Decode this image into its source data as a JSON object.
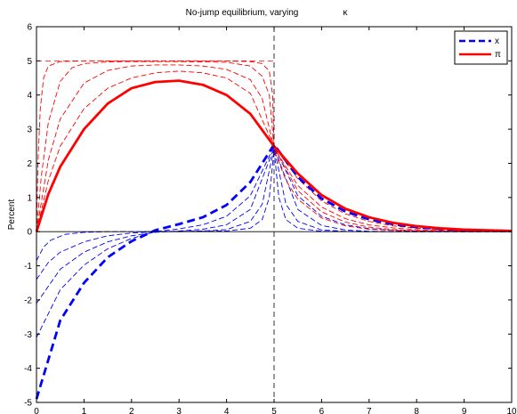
{
  "chart_data": {
    "type": "line",
    "title": "No-jump equilibrium, varying",
    "title_symbol": "κ",
    "xlabel": "",
    "ylabel": "Percent",
    "xlim": [
      0,
      10
    ],
    "ylim": [
      -5,
      6
    ],
    "xticks": [
      "0",
      "1",
      "2",
      "3",
      "4",
      "5",
      "6",
      "7",
      "8",
      "9",
      "10"
    ],
    "yticks": [
      "-5",
      "-4",
      "-3",
      "-2",
      "-1",
      "0",
      "1",
      "2",
      "3",
      "4",
      "5",
      "6"
    ],
    "grid": false,
    "legend_position": "top-right",
    "colors": {
      "x": "#0000ff",
      "pi": "#ff0000",
      "ref": "#000000"
    },
    "reference_lines": {
      "vertical_x": 5,
      "horizontal_y": 0,
      "horizontal_upper_y": 5
    },
    "legend": [
      {
        "label": "x",
        "color": "#0000ff",
        "style": "dashed-thick"
      },
      {
        "label": "π",
        "color": "#ff0000",
        "style": "solid-thick"
      }
    ],
    "series": [
      {
        "name": "x",
        "style": "dashed-thick",
        "color": "#0000ff",
        "x": [
          0,
          0.5,
          1,
          1.5,
          2,
          2.5,
          3,
          3.5,
          4,
          4.5,
          5,
          5.5,
          6,
          6.5,
          7,
          7.5,
          8,
          8.5,
          9,
          9.5,
          10
        ],
        "y": [
          -4.9,
          -2.6,
          -1.5,
          -0.75,
          -0.28,
          0.04,
          0.22,
          0.42,
          0.78,
          1.45,
          2.55,
          1.6,
          0.97,
          0.59,
          0.36,
          0.22,
          0.13,
          0.08,
          0.05,
          0.03,
          0.02
        ]
      },
      {
        "name": "π",
        "style": "solid-thick",
        "color": "#ff0000",
        "x": [
          0,
          0.25,
          0.5,
          1,
          1.5,
          2,
          2.5,
          3,
          3.5,
          4,
          4.5,
          5,
          5.5,
          6,
          6.5,
          7,
          7.5,
          8,
          8.5,
          9,
          9.5,
          10
        ],
        "y": [
          0,
          1.1,
          1.9,
          3.0,
          3.75,
          4.2,
          4.38,
          4.42,
          4.3,
          4.0,
          3.45,
          2.5,
          1.7,
          1.07,
          0.67,
          0.42,
          0.26,
          0.16,
          0.1,
          0.06,
          0.04,
          0.02
        ]
      },
      {
        "style": "dashed-thin",
        "color": "#0000ff",
        "x": [
          0,
          0.5,
          1,
          1.5,
          2,
          2.5,
          3,
          3.5,
          4,
          4.5,
          5,
          5.5,
          6,
          6.5,
          7,
          7.5,
          8,
          8.5,
          9,
          9.5,
          10
        ],
        "y": [
          -3.1,
          -1.7,
          -0.98,
          -0.5,
          -0.2,
          0.0,
          0.08,
          0.2,
          0.45,
          1.05,
          2.5,
          1.05,
          0.45,
          0.2,
          0.09,
          0.04,
          0.02,
          0.01,
          0.0,
          0.0,
          0.0
        ]
      },
      {
        "style": "dashed-thin",
        "color": "#0000ff",
        "x": [
          0,
          0.5,
          1,
          1.5,
          2,
          2.5,
          3,
          3.5,
          4,
          4.5,
          5,
          5.5,
          6,
          6.5,
          7,
          7.5,
          8,
          8.5,
          9,
          9.5,
          10
        ],
        "y": [
          -2.1,
          -1.1,
          -0.6,
          -0.3,
          -0.12,
          -0.02,
          0.02,
          0.07,
          0.2,
          0.65,
          2.45,
          0.65,
          0.18,
          0.05,
          0.01,
          0.0,
          0.0,
          0.0,
          0.0,
          0.0,
          0.0
        ]
      },
      {
        "style": "dashed-thin",
        "color": "#0000ff",
        "x": [
          0,
          0.25,
          0.5,
          1,
          1.5,
          2,
          2.5,
          3,
          3.5,
          4,
          4.5,
          4.75,
          5,
          5.25,
          5.5,
          6,
          6.5,
          7,
          8,
          9,
          10
        ],
        "y": [
          -1.4,
          -0.9,
          -0.6,
          -0.3,
          -0.12,
          -0.04,
          0,
          0.01,
          0.02,
          0.06,
          0.3,
          0.8,
          2.45,
          0.8,
          0.3,
          0.05,
          0.01,
          0,
          0,
          0,
          0
        ]
      },
      {
        "style": "dashed-thin",
        "color": "#0000ff",
        "x": [
          0,
          0.15,
          0.3,
          0.6,
          1,
          1.5,
          2,
          3,
          4,
          4.5,
          4.75,
          4.9,
          5,
          5.1,
          5.25,
          5.5,
          6,
          7,
          8,
          9,
          10
        ],
        "y": [
          -0.85,
          -0.45,
          -0.25,
          -0.08,
          -0.02,
          0,
          0,
          0,
          0.02,
          0.1,
          0.35,
          1.0,
          2.4,
          1.0,
          0.35,
          0.1,
          0.01,
          0,
          0,
          0,
          0
        ]
      },
      {
        "style": "dashed-thin",
        "color": "#ff0000",
        "x": [
          0,
          0.25,
          0.5,
          1,
          1.5,
          2,
          2.5,
          3,
          3.5,
          4,
          4.5,
          5,
          5.5,
          6,
          6.5,
          7,
          7.5,
          8,
          8.5,
          9,
          9.5,
          10
        ],
        "y": [
          0,
          1.5,
          2.5,
          3.6,
          4.2,
          4.5,
          4.65,
          4.7,
          4.65,
          4.5,
          4.05,
          2.5,
          1.55,
          0.9,
          0.52,
          0.3,
          0.17,
          0.1,
          0.06,
          0.03,
          0.02,
          0.01
        ]
      },
      {
        "style": "dashed-thin",
        "color": "#ff0000",
        "x": [
          0,
          0.25,
          0.5,
          1,
          1.5,
          2,
          2.5,
          3,
          3.5,
          4,
          4.5,
          4.75,
          5,
          5.5,
          6,
          6.5,
          7,
          7.5,
          8,
          8.5,
          9,
          9.5,
          10
        ],
        "y": [
          0,
          2.1,
          3.3,
          4.35,
          4.72,
          4.85,
          4.88,
          4.88,
          4.85,
          4.75,
          4.45,
          3.9,
          2.45,
          1.35,
          0.72,
          0.38,
          0.2,
          0.11,
          0.06,
          0.03,
          0.02,
          0.01,
          0
        ]
      },
      {
        "style": "dashed-thin",
        "color": "#ff0000",
        "x": [
          0,
          0.1,
          0.25,
          0.5,
          0.75,
          1,
          1.5,
          2,
          3,
          4,
          4.5,
          4.75,
          4.9,
          5,
          5.5,
          6,
          6.5,
          7,
          7.5,
          8,
          9,
          10
        ],
        "y": [
          0,
          1.6,
          3.2,
          4.4,
          4.8,
          4.92,
          4.97,
          4.98,
          4.98,
          4.96,
          4.85,
          4.55,
          4.0,
          2.45,
          1.2,
          0.58,
          0.28,
          0.13,
          0.06,
          0.03,
          0.01,
          0
        ]
      },
      {
        "style": "dashed-thin",
        "color": "#ff0000",
        "x": [
          0,
          0.03,
          0.08,
          0.15,
          0.25,
          0.5,
          1,
          2,
          3,
          4,
          4.5,
          4.75,
          4.9,
          4.97,
          5,
          5.25,
          5.5,
          6,
          6.5,
          7,
          8,
          9,
          10
        ],
        "y": [
          0,
          2.0,
          3.6,
          4.5,
          4.85,
          4.98,
          5,
          5,
          5,
          5,
          4.98,
          4.92,
          4.7,
          4.0,
          2.4,
          1.5,
          0.95,
          0.4,
          0.17,
          0.07,
          0.01,
          0,
          0
        ]
      }
    ]
  }
}
